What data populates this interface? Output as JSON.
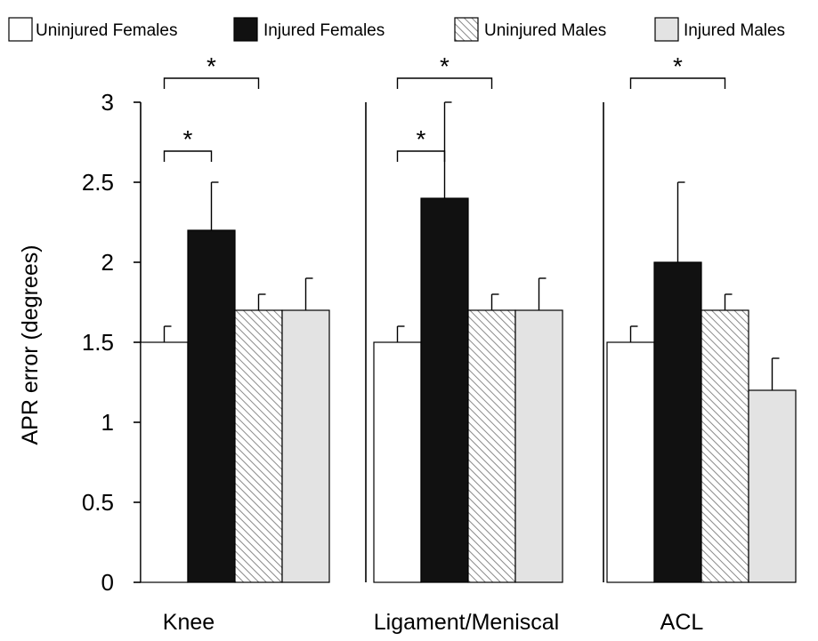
{
  "chart_data": {
    "type": "bar",
    "title": "",
    "xlabel": "",
    "ylabel": "APR error (degrees)",
    "ylim": [
      0,
      3
    ],
    "yticks": [
      "0",
      "0.5",
      "1",
      "1.5",
      "2",
      "2.5",
      "3"
    ],
    "categories": [
      "Knee",
      "Ligament/Meniscal",
      "ACL"
    ],
    "legend_position": "top",
    "grid": false,
    "series": [
      {
        "name": "Uninjured Females",
        "values": [
          1.5,
          1.5,
          1.5
        ],
        "errors": [
          0.1,
          0.1,
          0.1
        ],
        "fill": "#ffffff",
        "pattern": "none"
      },
      {
        "name": "Injured Females",
        "values": [
          2.2,
          2.4,
          2.0
        ],
        "errors": [
          0.3,
          0.6,
          0.5
        ],
        "fill": "#111111",
        "pattern": "none"
      },
      {
        "name": "Uninjured Males",
        "values": [
          1.7,
          1.7,
          1.7
        ],
        "errors": [
          0.1,
          0.1,
          0.1
        ],
        "fill": "#ffffff",
        "pattern": "hatch"
      },
      {
        "name": "Injured Males",
        "values": [
          1.7,
          1.7,
          1.2
        ],
        "errors": [
          0.2,
          0.2,
          0.2
        ],
        "fill": "#e3e3e3",
        "pattern": "none"
      }
    ],
    "significance": [
      {
        "category": 0,
        "from_series": 0,
        "to_series": 2,
        "level": 0,
        "label": "*"
      },
      {
        "category": 0,
        "from_series": 0,
        "to_series": 1,
        "level": 1,
        "label": "*"
      },
      {
        "category": 1,
        "from_series": 0,
        "to_series": 2,
        "level": 0,
        "label": "*"
      },
      {
        "category": 1,
        "from_series": 0,
        "to_series": 1,
        "level": 1,
        "label": "*"
      },
      {
        "category": 2,
        "from_series": 0,
        "to_series": 2,
        "level": 0,
        "label": "*"
      }
    ]
  }
}
